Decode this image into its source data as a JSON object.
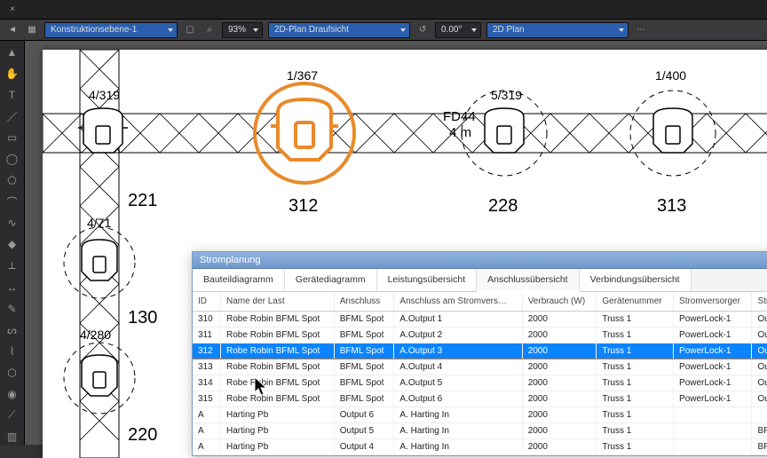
{
  "topbar": {
    "close_glyph": "×"
  },
  "toolbar": {
    "layer_dropdown": "Konstruktionsebene-1",
    "zoom": "93%",
    "view_dropdown": "2D-Plan Draufsicht",
    "angle": "0.00°",
    "plan_dropdown": "2D Plan"
  },
  "colors": {
    "accent_blue": "#2a5fad",
    "highlight_orange": "#e98a2a",
    "selection_blue": "#0a84ff",
    "panel_header_top": "#8fb2de",
    "panel_header_bottom": "#6f98cc"
  },
  "fixtures": {
    "f1": {
      "label": "4/319"
    },
    "f2": {
      "label": "1/367",
      "big_label": "312",
      "highlighted": true
    },
    "f3": {
      "labels": [
        "FD44",
        "4 m"
      ],
      "extra": "5/319",
      "big_label": "228"
    },
    "f4": {
      "label": "1/400",
      "big_label": "313"
    },
    "v1": {
      "label": "221"
    },
    "v2": {
      "label": "4/71"
    },
    "v3": {
      "label": "130"
    },
    "v4": {
      "label": "4/280"
    },
    "v5": {
      "label": "220"
    }
  },
  "panel": {
    "title": "Stromplanung",
    "tabs": [
      "Bauteildiagramm",
      "Gerätediagramm",
      "Leistungsübersicht",
      "Anschlussübersicht",
      "Verbindungsübersicht"
    ],
    "active_tab": 3,
    "columns": [
      "ID",
      "Name der Last",
      "Anschluss",
      "Anschluss am Stromvers…",
      "Verbrauch (W)",
      "Gerätenummer",
      "Stromversorger",
      "Stro"
    ],
    "rows": [
      {
        "id": "310",
        "name": "Robe Robin BFML Spot",
        "conn": "BFML Spot",
        "port": "A.Output 1",
        "watts": "2000",
        "dev": "Truss 1",
        "supply": "PowerLock-1",
        "last": "Outp"
      },
      {
        "id": "311",
        "name": "Robe Robin BFML Spot",
        "conn": "BFML Spot",
        "port": "A.Output 2",
        "watts": "2000",
        "dev": "Truss 1",
        "supply": "PowerLock-1",
        "last": "Outp"
      },
      {
        "id": "312",
        "name": "Robe Robin BFML Spot",
        "conn": "BFML Spot",
        "port": "A.Output 3",
        "watts": "2000",
        "dev": "Truss 1",
        "supply": "PowerLock-1",
        "last": "Ou",
        "selected": true
      },
      {
        "id": "313",
        "name": "Robe Robin BFML Spot",
        "conn": "BFML Spot",
        "port": "A.Output 4",
        "watts": "2000",
        "dev": "Truss 1",
        "supply": "PowerLock-1",
        "last": "Outp"
      },
      {
        "id": "314",
        "name": "Robe Robin BFML Spot",
        "conn": "BFML Spot",
        "port": "A.Output 5",
        "watts": "2000",
        "dev": "Truss 1",
        "supply": "PowerLock-1",
        "last": "Outp"
      },
      {
        "id": "315",
        "name": "Robe Robin BFML Spot",
        "conn": "BFML Spot",
        "port": "A.Output 6",
        "watts": "2000",
        "dev": "Truss 1",
        "supply": "PowerLock-1",
        "last": "Outp"
      },
      {
        "id": "A",
        "name": "Harting Pb",
        "conn": "Output 6",
        "port": "A. Harting In",
        "watts": "2000",
        "dev": "Truss 1",
        "supply": "",
        "last": ""
      },
      {
        "id": "A",
        "name": "Harting Pb",
        "conn": "Output 5",
        "port": "A. Harting In",
        "watts": "2000",
        "dev": "Truss 1",
        "supply": "",
        "last": "BFM"
      },
      {
        "id": "A",
        "name": "Harting Pb",
        "conn": "Output 4",
        "port": "A. Harting In",
        "watts": "2000",
        "dev": "Truss 1",
        "supply": "",
        "last": "BFM"
      }
    ]
  }
}
